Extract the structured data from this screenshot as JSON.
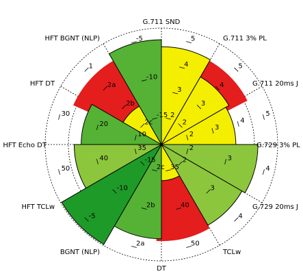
{
  "chart_data": {
    "type": "radar-sector",
    "grid": true,
    "max": 5,
    "colors": {
      "yellow": "#f4ee00",
      "red": "#e41d1d",
      "light_green": "#8cc63c",
      "mid_green": "#55b234",
      "dark_green": "#1e9a28"
    },
    "sectors": [
      {
        "label": "G.711 SND",
        "value": 4.2,
        "color": "yellow",
        "ticks": [
          "5",
          "4",
          "3",
          "2"
        ]
      },
      {
        "label": "G.711 3% PL",
        "value": 3.35,
        "color": "yellow",
        "ticks": [
          "5",
          "4",
          "3",
          "2"
        ]
      },
      {
        "label": "G.711 20ms J",
        "value": 3.2,
        "color": "yellow",
        "ticks": [
          "5",
          "4",
          "3",
          "2"
        ]
      },
      {
        "label": "G.729 3% PL",
        "value": 4.15,
        "color": "light_green",
        "ticks": [
          "4",
          "3",
          "2"
        ]
      },
      {
        "label": "G.729 20ms J",
        "value": 4.0,
        "color": "light_green",
        "ticks": [
          "4",
          "3",
          "2"
        ]
      },
      {
        "label": "TCLw",
        "value": 1.55,
        "color": "yellow",
        "ticks": [
          "50",
          "40",
          "35"
        ]
      },
      {
        "label": "DT",
        "value": 4.05,
        "color": "mid_green",
        "ticks": [
          "2a",
          "2b",
          "2c"
        ]
      },
      {
        "label": "BGNT (NLP)",
        "value": 4.95,
        "color": "dark_green",
        "ticks": [
          "-5",
          "-10",
          "-15"
        ]
      },
      {
        "label": "HFT TCLw",
        "value": 3.75,
        "color": "light_green",
        "ticks": [
          "50",
          "40",
          "35"
        ]
      },
      {
        "label": "HFT Echo DT",
        "value": 3.45,
        "color": "mid_green",
        "ticks": [
          "30",
          "20",
          "10"
        ]
      },
      {
        "label": "HFT DT",
        "value": 1.9,
        "color": "yellow",
        "ticks": [
          "1",
          "2a",
          "2b",
          "2c"
        ]
      },
      {
        "label": "HFT BGNT (NLP)",
        "value": 4.5,
        "color": "mid_green",
        "ticks": [
          "-5",
          "-10",
          "-15"
        ]
      }
    ],
    "red_band": {
      "from": 3.95,
      "to": 4.15,
      "segments": [
        {
          "start": 0,
          "end": 2.1
        },
        {
          "start": 5,
          "end": 6.1
        },
        {
          "start": 9.8,
          "end": 11.4
        }
      ]
    }
  }
}
